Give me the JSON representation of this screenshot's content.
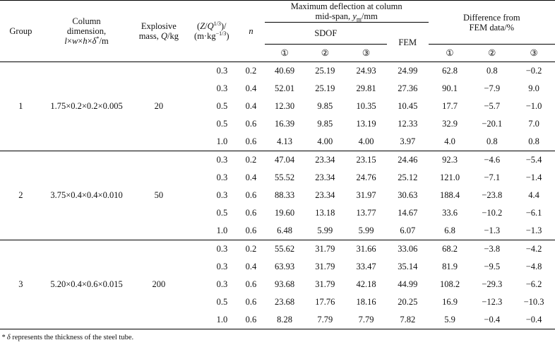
{
  "table": {
    "headers": {
      "group": "Group",
      "column_dim_line1": "Column",
      "column_dim_line2": "dimension,",
      "column_dim_line3": "l×w×h×δ*/m",
      "explosive_line1": "Explosive",
      "explosive_line2": "mass, Q/kg",
      "z_line1": "(Z/Q1/3)/",
      "z_line2": "(m·kg−1/3)",
      "n": "n",
      "max_defl_line1": "Maximum deflection at column",
      "max_defl_line2": "mid-span, ym/mm",
      "sdof": "SDOF",
      "fem": "FEM",
      "diff_line1": "Difference from",
      "diff_line2": "FEM data/%",
      "sub1": "①",
      "sub2": "②",
      "sub3": "③"
    },
    "groups": [
      {
        "group": "1",
        "dimension": "1.75×0.2×0.2×0.005",
        "mass": "20",
        "rows": [
          {
            "z": "0.3",
            "n": "0.2",
            "s1": "40.69",
            "s2": "25.19",
            "s3": "24.93",
            "fem": "24.99",
            "d1": "62.8",
            "d2": "0.8",
            "d3": "−0.2"
          },
          {
            "z": "0.3",
            "n": "0.4",
            "s1": "52.01",
            "s2": "25.19",
            "s3": "29.81",
            "fem": "27.36",
            "d1": "90.1",
            "d2": "−7.9",
            "d3": "9.0"
          },
          {
            "z": "0.5",
            "n": "0.4",
            "s1": "12.30",
            "s2": "9.85",
            "s3": "10.35",
            "fem": "10.45",
            "d1": "17.7",
            "d2": "−5.7",
            "d3": "−1.0"
          },
          {
            "z": "0.5",
            "n": "0.6",
            "s1": "16.39",
            "s2": "9.85",
            "s3": "13.19",
            "fem": "12.33",
            "d1": "32.9",
            "d2": "−20.1",
            "d3": "7.0"
          },
          {
            "z": "1.0",
            "n": "0.6",
            "s1": "4.13",
            "s2": "4.00",
            "s3": "4.00",
            "fem": "3.97",
            "d1": "4.0",
            "d2": "0.8",
            "d3": "0.8"
          }
        ]
      },
      {
        "group": "2",
        "dimension": "3.75×0.4×0.4×0.010",
        "mass": "50",
        "rows": [
          {
            "z": "0.3",
            "n": "0.2",
            "s1": "47.04",
            "s2": "23.34",
            "s3": "23.15",
            "fem": "24.46",
            "d1": "92.3",
            "d2": "−4.6",
            "d3": "−5.4"
          },
          {
            "z": "0.3",
            "n": "0.4",
            "s1": "55.52",
            "s2": "23.34",
            "s3": "24.76",
            "fem": "25.12",
            "d1": "121.0",
            "d2": "−7.1",
            "d3": "−1.4"
          },
          {
            "z": "0.3",
            "n": "0.6",
            "s1": "88.33",
            "s2": "23.34",
            "s3": "31.97",
            "fem": "30.63",
            "d1": "188.4",
            "d2": "−23.8",
            "d3": "4.4"
          },
          {
            "z": "0.5",
            "n": "0.6",
            "s1": "19.60",
            "s2": "13.18",
            "s3": "13.77",
            "fem": "14.67",
            "d1": "33.6",
            "d2": "−10.2",
            "d3": "−6.1"
          },
          {
            "z": "1.0",
            "n": "0.6",
            "s1": "6.48",
            "s2": "5.99",
            "s3": "5.99",
            "fem": "6.07",
            "d1": "6.8",
            "d2": "−1.3",
            "d3": "−1.3"
          }
        ]
      },
      {
        "group": "3",
        "dimension": "5.20×0.4×0.6×0.015",
        "mass": "200",
        "rows": [
          {
            "z": "0.3",
            "n": "0.2",
            "s1": "55.62",
            "s2": "31.79",
            "s3": "31.66",
            "fem": "33.06",
            "d1": "68.2",
            "d2": "−3.8",
            "d3": "−4.2"
          },
          {
            "z": "0.3",
            "n": "0.4",
            "s1": "63.93",
            "s2": "31.79",
            "s3": "33.47",
            "fem": "35.14",
            "d1": "81.9",
            "d2": "−9.5",
            "d3": "−4.8"
          },
          {
            "z": "0.3",
            "n": "0.6",
            "s1": "93.68",
            "s2": "31.79",
            "s3": "42.18",
            "fem": "44.99",
            "d1": "108.2",
            "d2": "−29.3",
            "d3": "−6.2"
          },
          {
            "z": "0.5",
            "n": "0.6",
            "s1": "23.68",
            "s2": "17.76",
            "s3": "18.16",
            "fem": "20.25",
            "d1": "16.9",
            "d2": "−12.3",
            "d3": "−10.3"
          },
          {
            "z": "1.0",
            "n": "0.6",
            "s1": "8.28",
            "s2": "7.79",
            "s3": "7.79",
            "fem": "7.82",
            "d1": "5.9",
            "d2": "−0.4",
            "d3": "−0.4"
          }
        ]
      }
    ],
    "footnote": "* δ represents the thickness of the steel tube."
  }
}
